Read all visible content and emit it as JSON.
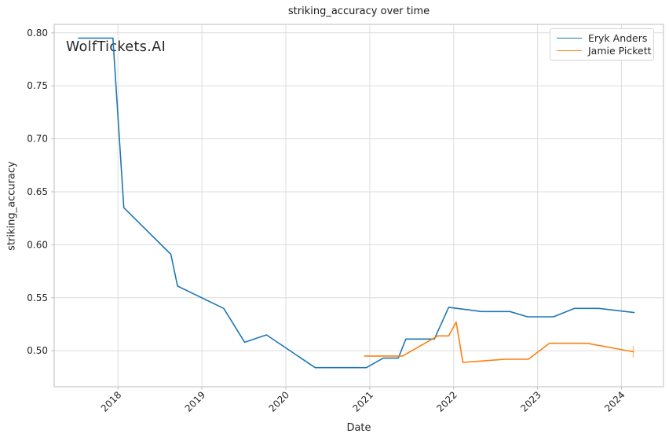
{
  "chart_data": {
    "type": "line",
    "title": "striking_accuracy over time",
    "xlabel": "Date",
    "ylabel": "striking_accuracy",
    "watermark": "WolfTickets.AI",
    "grid": true,
    "legend_position": "upper right",
    "xlim": [
      2017.24,
      2024.5
    ],
    "ylim": [
      0.466,
      0.808
    ],
    "x_ticks": [
      {
        "label": "2018",
        "value": 2018
      },
      {
        "label": "2019",
        "value": 2019
      },
      {
        "label": "2020",
        "value": 2020
      },
      {
        "label": "2021",
        "value": 2021
      },
      {
        "label": "2022",
        "value": 2022
      },
      {
        "label": "2023",
        "value": 2023
      },
      {
        "label": "2024",
        "value": 2024
      }
    ],
    "y_ticks": [
      {
        "label": "0.50",
        "value": 0.5
      },
      {
        "label": "0.55",
        "value": 0.55
      },
      {
        "label": "0.60",
        "value": 0.6
      },
      {
        "label": "0.65",
        "value": 0.65
      },
      {
        "label": "0.70",
        "value": 0.7
      },
      {
        "label": "0.75",
        "value": 0.75
      },
      {
        "label": "0.80",
        "value": 0.8
      }
    ],
    "colors": {
      "grid": "#dcdcdc",
      "spine": "#c9c9c9",
      "tick": "#b5b5b5",
      "text": "#262626",
      "watermark": "#c9c9c9"
    },
    "series": [
      {
        "name": "Eryk Anders",
        "color": "#1f77b4",
        "points": [
          [
            2017.53,
            0.795
          ],
          [
            2017.94,
            0.795
          ],
          [
            2018.07,
            0.635
          ],
          [
            2018.63,
            0.591
          ],
          [
            2018.71,
            0.561
          ],
          [
            2019.26,
            0.54
          ],
          [
            2019.51,
            0.508
          ],
          [
            2019.77,
            0.515
          ],
          [
            2020.35,
            0.484
          ],
          [
            2020.96,
            0.484
          ],
          [
            2021.16,
            0.493
          ],
          [
            2021.34,
            0.493
          ],
          [
            2021.43,
            0.511
          ],
          [
            2021.77,
            0.511
          ],
          [
            2021.94,
            0.541
          ],
          [
            2022.33,
            0.537
          ],
          [
            2022.67,
            0.537
          ],
          [
            2022.88,
            0.532
          ],
          [
            2023.19,
            0.532
          ],
          [
            2023.44,
            0.54
          ],
          [
            2023.73,
            0.54
          ],
          [
            2024.15,
            0.536
          ]
        ]
      },
      {
        "name": "Jamie Pickett",
        "color": "#ff7f0e",
        "points": [
          [
            2020.94,
            0.495
          ],
          [
            2021.39,
            0.495
          ],
          [
            2021.81,
            0.514
          ],
          [
            2021.94,
            0.514
          ],
          [
            2022.03,
            0.527
          ],
          [
            2022.11,
            0.489
          ],
          [
            2022.61,
            0.492
          ],
          [
            2022.89,
            0.492
          ],
          [
            2023.14,
            0.507
          ],
          [
            2023.59,
            0.507
          ],
          [
            2024.14,
            0.499
          ]
        ],
        "end_tick": {
          "x": 2024.14,
          "y1": 0.4935,
          "y2": 0.5045
        }
      }
    ]
  }
}
